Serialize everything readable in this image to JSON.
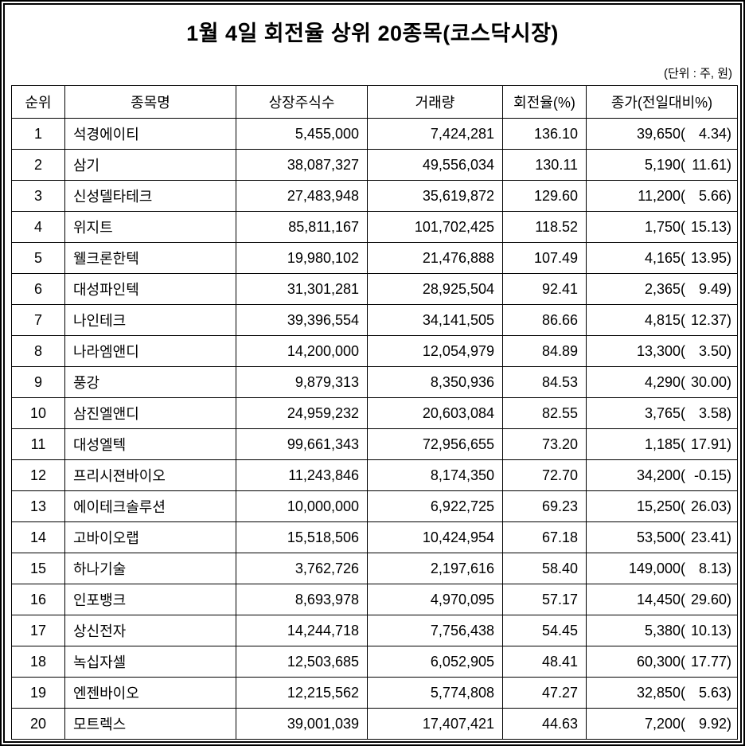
{
  "title": "1월 4일 회전율 상위 20종목(코스닥시장)",
  "unit_note": "(단위 : 주, 원)",
  "table": {
    "headers": [
      "순위",
      "종목명",
      "상장주식수",
      "거래량",
      "회전율(%)",
      "종가(전일대비%)"
    ],
    "punct": {
      "open": "(",
      "close": ")"
    },
    "rows": [
      {
        "rank": "1",
        "name": "석경에이티",
        "shares": "5,455,000",
        "volume": "7,424,281",
        "turnover": "136.10",
        "close": "39,650",
        "change": "4.34"
      },
      {
        "rank": "2",
        "name": "삼기",
        "shares": "38,087,327",
        "volume": "49,556,034",
        "turnover": "130.11",
        "close": "5,190",
        "change": "11.61"
      },
      {
        "rank": "3",
        "name": "신성델타테크",
        "shares": "27,483,948",
        "volume": "35,619,872",
        "turnover": "129.60",
        "close": "11,200",
        "change": "5.66"
      },
      {
        "rank": "4",
        "name": "위지트",
        "shares": "85,811,167",
        "volume": "101,702,425",
        "turnover": "118.52",
        "close": "1,750",
        "change": "15.13"
      },
      {
        "rank": "5",
        "name": "웰크론한텍",
        "shares": "19,980,102",
        "volume": "21,476,888",
        "turnover": "107.49",
        "close": "4,165",
        "change": "13.95"
      },
      {
        "rank": "6",
        "name": "대성파인텍",
        "shares": "31,301,281",
        "volume": "28,925,504",
        "turnover": "92.41",
        "close": "2,365",
        "change": "9.49"
      },
      {
        "rank": "7",
        "name": "나인테크",
        "shares": "39,396,554",
        "volume": "34,141,505",
        "turnover": "86.66",
        "close": "4,815",
        "change": "12.37"
      },
      {
        "rank": "8",
        "name": "나라엠앤디",
        "shares": "14,200,000",
        "volume": "12,054,979",
        "turnover": "84.89",
        "close": "13,300",
        "change": "3.50"
      },
      {
        "rank": "9",
        "name": "풍강",
        "shares": "9,879,313",
        "volume": "8,350,936",
        "turnover": "84.53",
        "close": "4,290",
        "change": "30.00"
      },
      {
        "rank": "10",
        "name": "삼진엘앤디",
        "shares": "24,959,232",
        "volume": "20,603,084",
        "turnover": "82.55",
        "close": "3,765",
        "change": "3.58"
      },
      {
        "rank": "11",
        "name": "대성엘텍",
        "shares": "99,661,343",
        "volume": "72,956,655",
        "turnover": "73.20",
        "close": "1,185",
        "change": "17.91"
      },
      {
        "rank": "12",
        "name": "프리시젼바이오",
        "shares": "11,243,846",
        "volume": "8,174,350",
        "turnover": "72.70",
        "close": "34,200",
        "change": "-0.15"
      },
      {
        "rank": "13",
        "name": "에이테크솔루션",
        "shares": "10,000,000",
        "volume": "6,922,725",
        "turnover": "69.23",
        "close": "15,250",
        "change": "26.03"
      },
      {
        "rank": "14",
        "name": "고바이오랩",
        "shares": "15,518,506",
        "volume": "10,424,954",
        "turnover": "67.18",
        "close": "53,500",
        "change": "23.41"
      },
      {
        "rank": "15",
        "name": "하나기술",
        "shares": "3,762,726",
        "volume": "2,197,616",
        "turnover": "58.40",
        "close": "149,000",
        "change": "8.13"
      },
      {
        "rank": "16",
        "name": "인포뱅크",
        "shares": "8,693,978",
        "volume": "4,970,095",
        "turnover": "57.17",
        "close": "14,450",
        "change": "29.60"
      },
      {
        "rank": "17",
        "name": "상신전자",
        "shares": "14,244,718",
        "volume": "7,756,438",
        "turnover": "54.45",
        "close": "5,380",
        "change": "10.13"
      },
      {
        "rank": "18",
        "name": "녹십자셀",
        "shares": "12,503,685",
        "volume": "6,052,905",
        "turnover": "48.41",
        "close": "60,300",
        "change": "17.77"
      },
      {
        "rank": "19",
        "name": "엔젠바이오",
        "shares": "12,215,562",
        "volume": "5,774,808",
        "turnover": "47.27",
        "close": "32,850",
        "change": "5.63"
      },
      {
        "rank": "20",
        "name": "모트렉스",
        "shares": "39,001,039",
        "volume": "17,407,421",
        "turnover": "44.63",
        "close": "7,200",
        "change": "9.92"
      }
    ]
  }
}
